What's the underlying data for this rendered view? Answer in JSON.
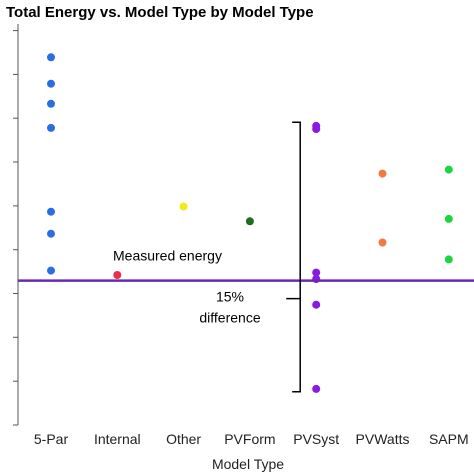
{
  "chart_data": {
    "type": "scatter",
    "title": "Total Energy vs. Model Type by Model Type",
    "xlabel": "Model Type",
    "ylabel": "",
    "categories": [
      "5-Par",
      "Internal",
      "Other",
      "PVForm",
      "PVSyst",
      "PVWatts",
      "SAPM"
    ],
    "ylim": [
      0,
      1
    ],
    "grid": false,
    "legend": "none",
    "points": [
      {
        "category": "5-Par",
        "y": 0.917,
        "color": "#2a6ee0"
      },
      {
        "category": "5-Par",
        "y": 0.851,
        "color": "#2a6ee0"
      },
      {
        "category": "5-Par",
        "y": 0.801,
        "color": "#2a6ee0"
      },
      {
        "category": "5-Par",
        "y": 0.741,
        "color": "#2a6ee0"
      },
      {
        "category": "5-Par",
        "y": 0.532,
        "color": "#2a6ee0"
      },
      {
        "category": "5-Par",
        "y": 0.477,
        "color": "#2a6ee0"
      },
      {
        "category": "5-Par",
        "y": 0.385,
        "color": "#2a6ee0"
      },
      {
        "category": "Internal",
        "y": 0.374,
        "color": "#e8304a"
      },
      {
        "category": "Other",
        "y": 0.545,
        "color": "#f2ea1c"
      },
      {
        "category": "PVForm",
        "y": 0.508,
        "color": "#1e6e1e"
      },
      {
        "category": "PVSyst",
        "y": 0.746,
        "color": "#8a18e6"
      },
      {
        "category": "PVSyst",
        "y": 0.738,
        "color": "#8a18e6"
      },
      {
        "category": "PVSyst",
        "y": 0.38,
        "color": "#8a18e6"
      },
      {
        "category": "PVSyst",
        "y": 0.364,
        "color": "#8a18e6"
      },
      {
        "category": "PVSyst",
        "y": 0.3,
        "color": "#8a18e6"
      },
      {
        "category": "PVSyst",
        "y": 0.09,
        "color": "#8a18e6"
      },
      {
        "category": "PVWatts",
        "y": 0.627,
        "color": "#f07a40"
      },
      {
        "category": "PVWatts",
        "y": 0.455,
        "color": "#f07a40"
      },
      {
        "category": "SAPM",
        "y": 0.637,
        "color": "#1ed440"
      },
      {
        "category": "SAPM",
        "y": 0.514,
        "color": "#1ed440"
      },
      {
        "category": "SAPM",
        "y": 0.413,
        "color": "#1ed440"
      }
    ],
    "reference_line": {
      "y": 0.36,
      "color": "#6a2ab0",
      "label": "Measured energy"
    },
    "bracket": {
      "category": "PVSyst",
      "y_top": 0.755,
      "y_bottom": 0.083,
      "y_mid": 0.315,
      "label_lines": [
        "15%",
        "difference"
      ]
    }
  }
}
